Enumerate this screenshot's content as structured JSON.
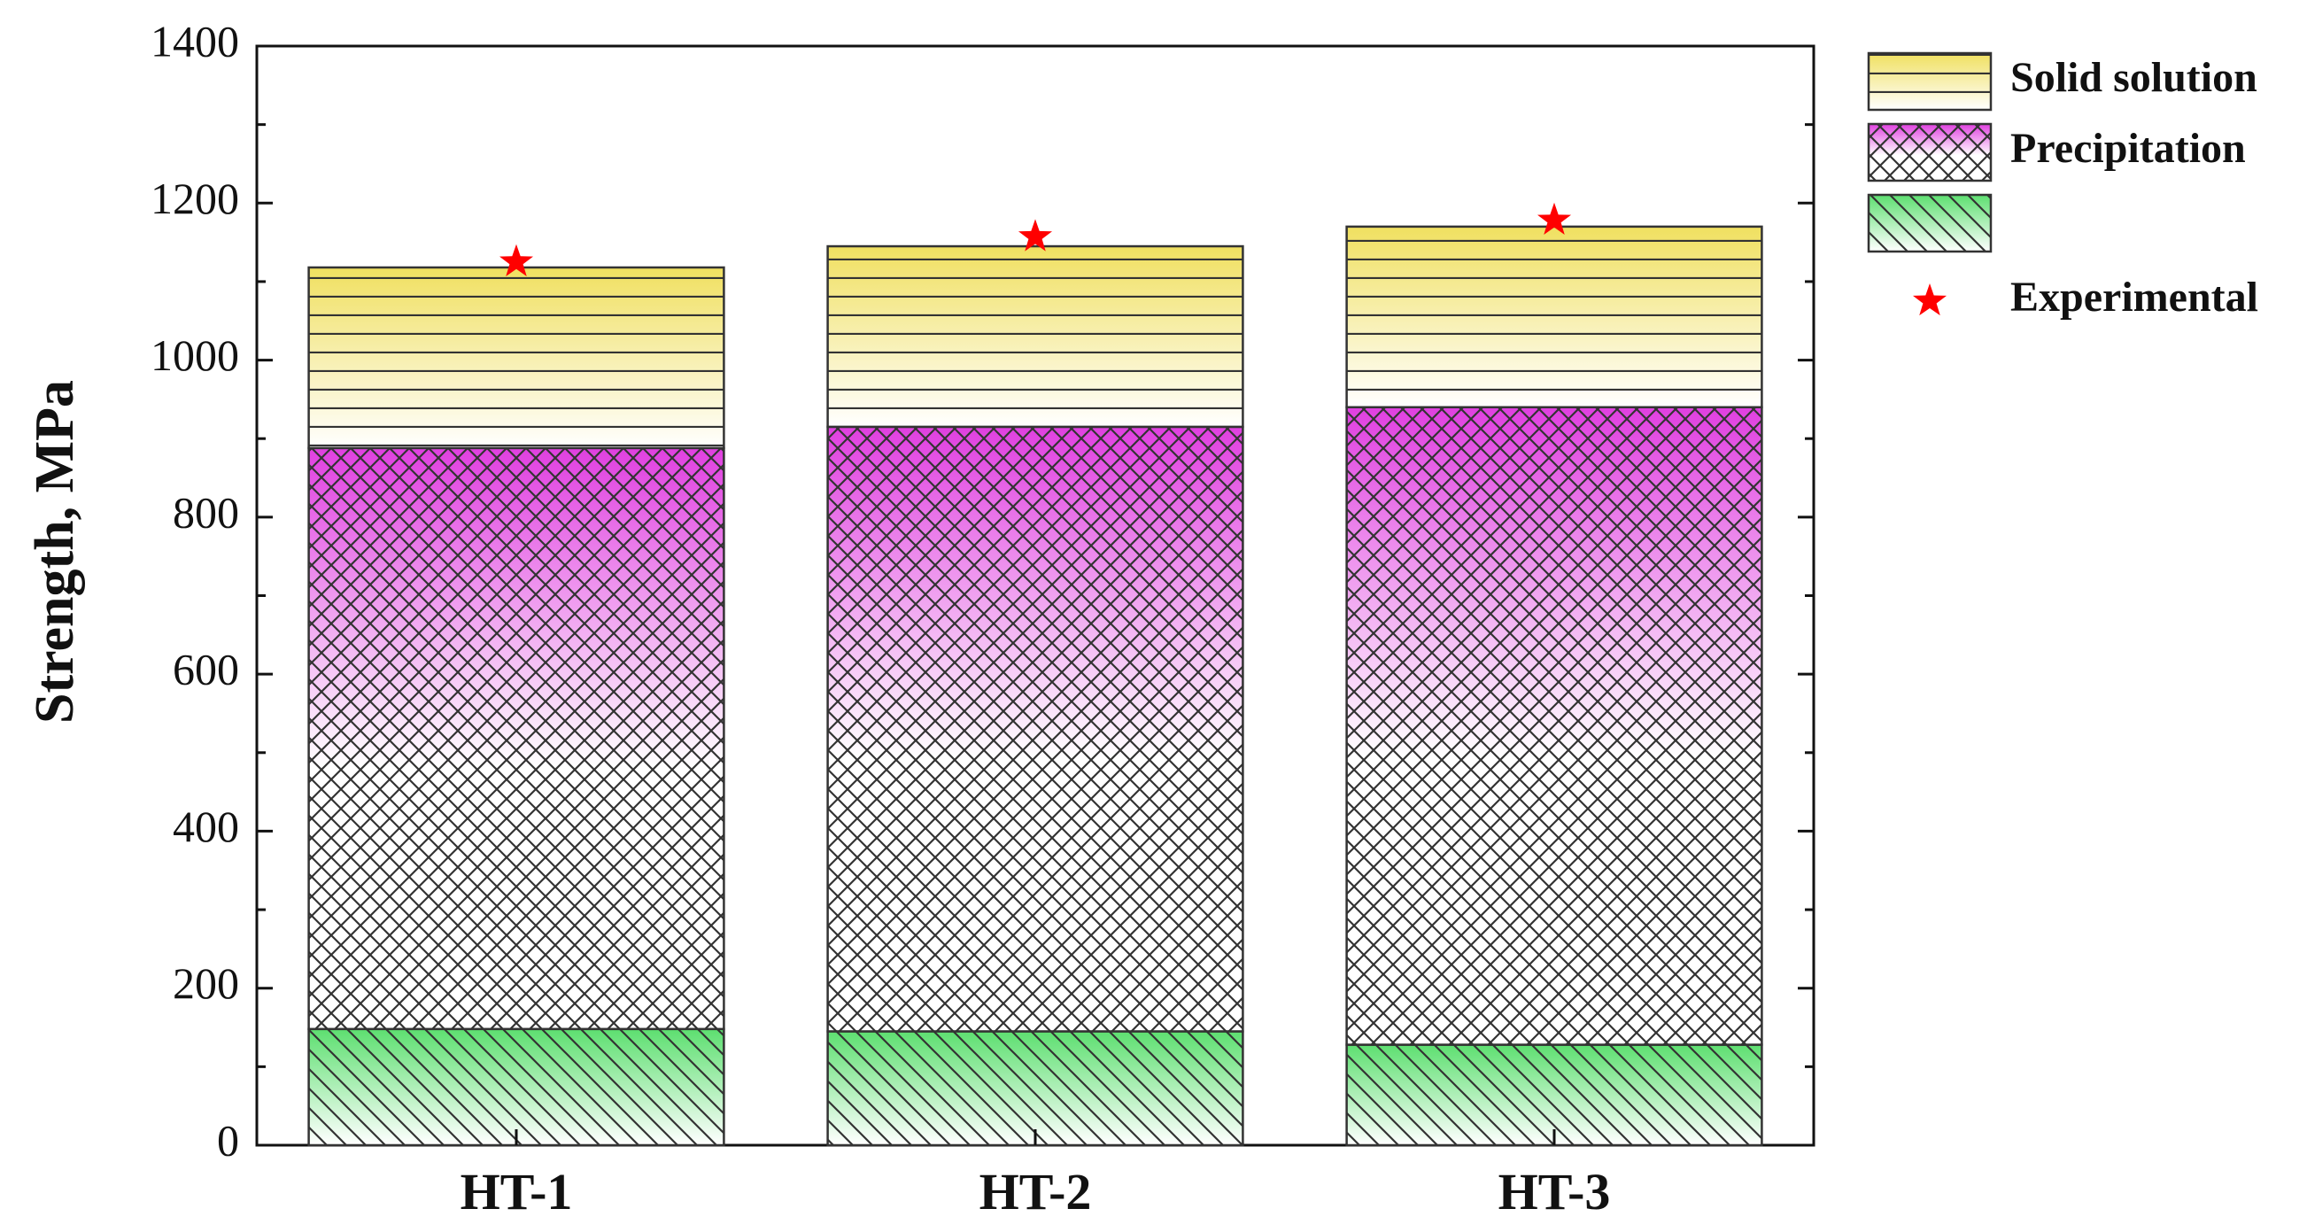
{
  "chart_data": {
    "type": "bar",
    "stacked": true,
    "categories": [
      "HT-1",
      "HT-2",
      "HT-3"
    ],
    "series": [
      {
        "values": [
          148,
          145,
          128
        ],
        "color": "#5ddf70",
        "pattern": "diagonal"
      },
      {
        "name": "Precipitation",
        "values": [
          740,
          770,
          812
        ],
        "color": "#e040e0",
        "pattern": "crosshatch"
      },
      {
        "name": "Solid solution",
        "values": [
          230,
          230,
          230
        ],
        "color": "#f0e060",
        "pattern": "horizontal"
      }
    ],
    "experimental": {
      "name": "Experimental",
      "values": [
        1125,
        1157,
        1178
      ],
      "color": "#ff0000",
      "marker": "star"
    },
    "ylabel": "Strength, MPa",
    "xlabel": "",
    "ylim": [
      0,
      1400
    ],
    "yticks": [
      0,
      200,
      400,
      600,
      800,
      1000,
      1200,
      1400
    ],
    "legend_position": "right",
    "grid": false
  }
}
